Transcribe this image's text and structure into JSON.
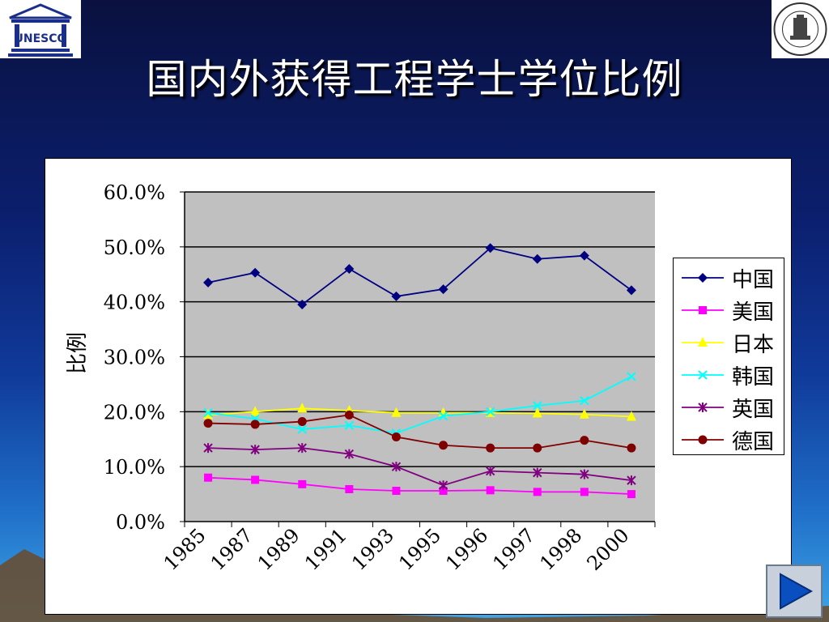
{
  "slide": {
    "title": "国内外获得工程学士学位比例",
    "left_logo_text": "UNESCO",
    "right_logo_text": "BEIJING JIAOTONG UNIVERSITY"
  },
  "colors": {
    "plot_bg": "#c0c0c0",
    "title": "#ffffff"
  },
  "chart_data": {
    "type": "line",
    "title": "",
    "xlabel": "",
    "ylabel": "比例",
    "ylim": [
      0,
      60
    ],
    "yticks": [
      "0.0%",
      "10.0%",
      "20.0%",
      "30.0%",
      "40.0%",
      "50.0%",
      "60.0%"
    ],
    "categories": [
      "1985",
      "1987",
      "1989",
      "1991",
      "1993",
      "1995",
      "1996",
      "1997",
      "1998",
      "2000"
    ],
    "grid": "horizontal major",
    "legend_position": "right",
    "series": [
      {
        "name": "中国",
        "color": "#000080",
        "marker": "diamond",
        "values": [
          43.5,
          45.3,
          39.5,
          46.0,
          41.0,
          42.3,
          49.8,
          47.8,
          48.4,
          42.1
        ]
      },
      {
        "name": "美国",
        "color": "#ff00ff",
        "marker": "square",
        "values": [
          8.0,
          7.6,
          6.8,
          5.9,
          5.6,
          5.6,
          5.7,
          5.4,
          5.4,
          5.0
        ]
      },
      {
        "name": "日本",
        "color": "#ffff00",
        "marker": "triangle",
        "values": [
          19.4,
          20.0,
          20.6,
          20.2,
          19.8,
          19.8,
          19.8,
          19.7,
          19.5,
          19.1
        ]
      },
      {
        "name": "韩国",
        "color": "#00ffff",
        "marker": "x",
        "values": [
          19.8,
          18.7,
          16.8,
          17.5,
          16.1,
          19.2,
          20.0,
          21.1,
          22.0,
          26.4
        ]
      },
      {
        "name": "英国",
        "color": "#800080",
        "marker": "star",
        "values": [
          13.4,
          13.1,
          13.4,
          12.3,
          10.0,
          6.6,
          9.2,
          8.9,
          8.6,
          7.5
        ]
      },
      {
        "name": "德国",
        "color": "#800000",
        "marker": "circle",
        "values": [
          17.9,
          17.7,
          18.2,
          19.4,
          15.4,
          13.9,
          13.4,
          13.4,
          14.8,
          13.4
        ]
      }
    ]
  }
}
